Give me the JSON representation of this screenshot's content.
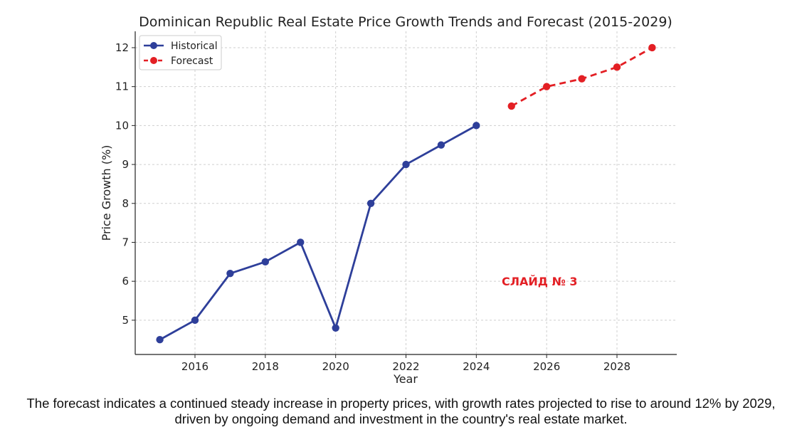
{
  "chart_data": {
    "type": "line",
    "title": "Dominican Republic Real Estate Price Growth Trends and Forecast (2015-2029)",
    "xlabel": "Year",
    "ylabel": "Price Growth (%)",
    "xlim": [
      2014.3,
      2029.7
    ],
    "ylim": [
      4.12,
      12.42
    ],
    "x_ticks": [
      2016,
      2018,
      2020,
      2022,
      2024,
      2026,
      2028
    ],
    "y_ticks": [
      5,
      6,
      7,
      8,
      9,
      10,
      11,
      12
    ],
    "grid": true,
    "legend_position": "top-left",
    "series": [
      {
        "name": "Historical",
        "color": "#2e3f9a",
        "line_style": "solid",
        "x": [
          2015,
          2016,
          2017,
          2018,
          2019,
          2020,
          2021,
          2022,
          2023,
          2024
        ],
        "values": [
          4.5,
          5.0,
          6.2,
          6.5,
          7.0,
          4.8,
          8.0,
          9.0,
          9.5,
          10.0
        ]
      },
      {
        "name": "Forecast",
        "color": "#e31f24",
        "line_style": "dashed",
        "x": [
          2025,
          2026,
          2027,
          2028,
          2029
        ],
        "values": [
          10.5,
          11.0,
          11.2,
          11.5,
          12.0
        ]
      }
    ],
    "annotation": {
      "text": "СЛАЙД № 3",
      "x": 2025.8,
      "y": 6.0,
      "color": "#e31f24"
    }
  },
  "caption": "The forecast indicates a continued steady increase in property prices, with growth rates projected to rise to around 12% by 2029, driven by ongoing demand and investment in the country's real estate market."
}
